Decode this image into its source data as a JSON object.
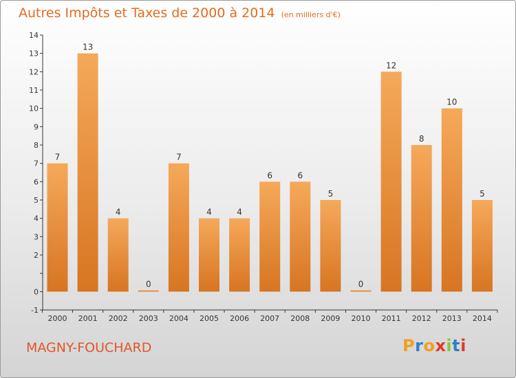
{
  "header": {
    "title": "Autres Impôts et Taxes de 2000 à 2014",
    "unit": "(en milliers d'€)"
  },
  "footer": {
    "commune": "MAGNY-FOUCHARD",
    "logo": [
      "P",
      "r",
      "o",
      "x",
      "i",
      "t",
      "i"
    ],
    "logo_colors": [
      "#f0a020",
      "#2f7fc8",
      "#f0a020",
      "#e03a2a",
      "#8cc63f",
      "#2f7fc8",
      "#e03a2a"
    ]
  },
  "colors": {
    "bar_light": "#f5a95a",
    "bar_dark": "#d77522",
    "title": "#e46b1e",
    "axis": "#333333",
    "text": "#333333"
  },
  "chart_data": {
    "type": "bar",
    "title": "Autres Impôts et Taxes de 2000 à 2014",
    "subtitle": "(en milliers d'€)",
    "categories": [
      "2000",
      "2001",
      "2002",
      "2003",
      "2004",
      "2005",
      "2006",
      "2007",
      "2008",
      "2009",
      "2010",
      "2011",
      "2012",
      "2013",
      "2014"
    ],
    "values": [
      7,
      13,
      4,
      0,
      7,
      4,
      4,
      6,
      6,
      5,
      0,
      12,
      8,
      10,
      5
    ],
    "ylim": [
      -1,
      14
    ],
    "yticks": [
      "-1",
      "0",
      "",
      "2",
      "3",
      "4",
      "5",
      "6",
      "7",
      "8",
      "9",
      "10",
      "11",
      "12",
      "13",
      "14"
    ],
    "ytick_values": [
      -1,
      0,
      1,
      2,
      3,
      4,
      5,
      6,
      7,
      8,
      9,
      10,
      11,
      12,
      13,
      14
    ],
    "grid": false,
    "legend": "none"
  }
}
